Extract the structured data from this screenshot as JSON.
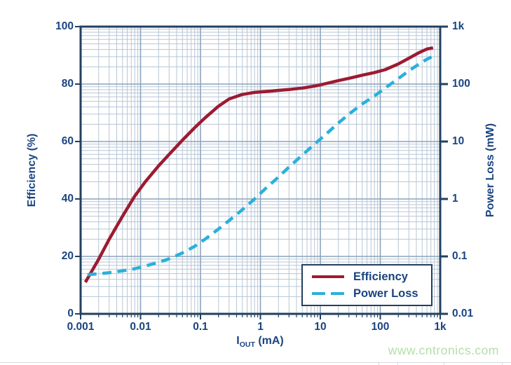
{
  "page": {
    "watermark": "www.cntronics.com"
  },
  "colors": {
    "text_navy": "#1a4480",
    "axis_navy": "#22405f",
    "grid_major": "#8aa4bc",
    "grid_minor": "#b7c6d6",
    "efficiency_red": "#9c1b31",
    "power_cyan": "#2ab0dc",
    "watermark_green": "#b2dfa8",
    "rule_gray": "#d7dbdf"
  },
  "chart_data": {
    "type": "line",
    "title": "",
    "x_axis": {
      "label_symbol": "I",
      "label_sub": "OUT",
      "label_unit": " (mA)",
      "scale": "log",
      "min": 0.001,
      "max": 1000,
      "tick_labels": [
        "0.001",
        "0.01",
        "0.1",
        "1",
        "10",
        "100",
        "1k"
      ]
    },
    "y_left": {
      "label": "Efficiency (%)",
      "scale": "linear",
      "min": 0,
      "max": 100,
      "tick_labels": [
        "0",
        "20",
        "40",
        "60",
        "80",
        "100"
      ]
    },
    "y_right": {
      "label": "Power Loss (mW)",
      "scale": "log",
      "min": 0.01,
      "max": 1000,
      "tick_labels": [
        "0.01",
        "0.1",
        "1",
        "10",
        "100",
        "1k"
      ]
    },
    "grid": "log-log major and minor gridlines, on",
    "legend": {
      "position": "inside bottom-right",
      "entries": [
        {
          "label": "Efficiency",
          "style": "solid",
          "color": "#9c1b31"
        },
        {
          "label": "Power Loss",
          "style": "dashed",
          "color": "#2ab0dc"
        }
      ]
    },
    "series": [
      {
        "name": "Efficiency",
        "axis": "left",
        "style": "solid",
        "color": "#9c1b31",
        "points": [
          [
            0.0012,
            11
          ],
          [
            0.002,
            19
          ],
          [
            0.003,
            26
          ],
          [
            0.005,
            34
          ],
          [
            0.008,
            41
          ],
          [
            0.012,
            46
          ],
          [
            0.02,
            51.5
          ],
          [
            0.03,
            55.5
          ],
          [
            0.05,
            60.5
          ],
          [
            0.08,
            64.8
          ],
          [
            0.12,
            68.3
          ],
          [
            0.2,
            72.3
          ],
          [
            0.3,
            74.8
          ],
          [
            0.5,
            76.4
          ],
          [
            0.8,
            77.1
          ],
          [
            1.2,
            77.4
          ],
          [
            2,
            77.8
          ],
          [
            3,
            78.1
          ],
          [
            5,
            78.6
          ],
          [
            8,
            79.3
          ],
          [
            12,
            80.1
          ],
          [
            20,
            81.2
          ],
          [
            30,
            82.0
          ],
          [
            50,
            83.1
          ],
          [
            80,
            84.0
          ],
          [
            120,
            85.0
          ],
          [
            200,
            87.0
          ],
          [
            300,
            89.0
          ],
          [
            450,
            91.0
          ],
          [
            600,
            92.2
          ],
          [
            760,
            92.6
          ]
        ]
      },
      {
        "name": "Power Loss",
        "axis": "right",
        "style": "dashed",
        "color": "#2ab0dc",
        "points": [
          [
            0.0013,
            0.048
          ],
          [
            0.002,
            0.05
          ],
          [
            0.003,
            0.052
          ],
          [
            0.005,
            0.056
          ],
          [
            0.008,
            0.061
          ],
          [
            0.012,
            0.068
          ],
          [
            0.02,
            0.079
          ],
          [
            0.03,
            0.091
          ],
          [
            0.05,
            0.115
          ],
          [
            0.08,
            0.15
          ],
          [
            0.12,
            0.2
          ],
          [
            0.2,
            0.3
          ],
          [
            0.3,
            0.42
          ],
          [
            0.5,
            0.65
          ],
          [
            0.8,
            1.0
          ],
          [
            1.2,
            1.5
          ],
          [
            2,
            2.4
          ],
          [
            3,
            3.6
          ],
          [
            5,
            5.8
          ],
          [
            8,
            9
          ],
          [
            12,
            13
          ],
          [
            20,
            21
          ],
          [
            30,
            30
          ],
          [
            50,
            45
          ],
          [
            80,
            62
          ],
          [
            120,
            85
          ],
          [
            200,
            125
          ],
          [
            300,
            170
          ],
          [
            450,
            225
          ],
          [
            600,
            270
          ],
          [
            850,
            325
          ]
        ]
      }
    ]
  }
}
